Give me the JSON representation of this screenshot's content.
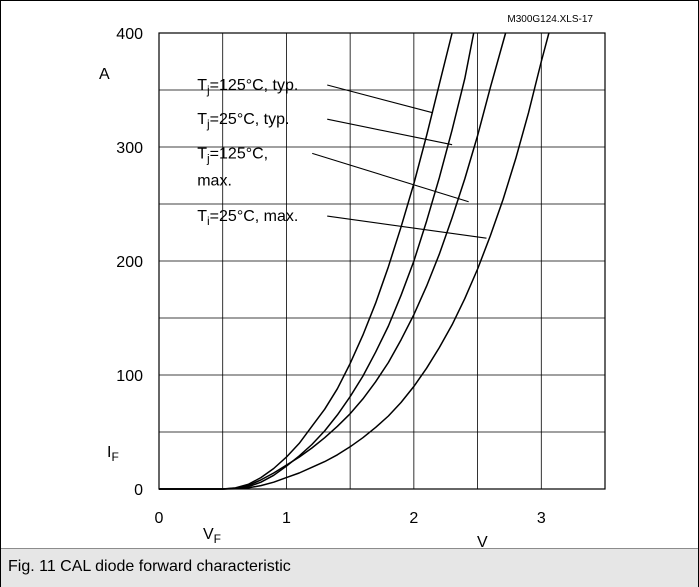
{
  "caption": "Fig. 11 CAL diode forward characteristic",
  "chart_data": {
    "type": "line",
    "file_tag": "M300G124.XLS-17",
    "xlim": [
      0,
      3.5
    ],
    "ylim": [
      0,
      400
    ],
    "x_ticks": [
      {
        "value": 0,
        "label": "0"
      },
      {
        "value": 1,
        "label": "1"
      },
      {
        "value": 2,
        "label": "2"
      },
      {
        "value": 3,
        "label": "3"
      }
    ],
    "y_ticks": [
      {
        "value": 0,
        "label": "0"
      },
      {
        "value": 100,
        "label": "100"
      },
      {
        "value": 200,
        "label": "200"
      },
      {
        "value": 300,
        "label": "300"
      },
      {
        "value": 400,
        "label": "400"
      }
    ],
    "grid": {
      "x_step": 0.5,
      "y_step": 50
    },
    "x_unit": "V",
    "y_unit": "A",
    "x_symbol": {
      "main": "V",
      "sub": "F"
    },
    "y_symbol": {
      "main": "I",
      "sub": "F"
    },
    "series": [
      {
        "label_main": "T",
        "label_sub": "j",
        "label_rest": "=125°C, typ.",
        "label_at": [
          0.3,
          350
        ],
        "leader_to": [
          2.15,
          330
        ],
        "points": [
          [
            0,
            0
          ],
          [
            0.5,
            0
          ],
          [
            0.6,
            1
          ],
          [
            0.7,
            4
          ],
          [
            0.8,
            10
          ],
          [
            0.9,
            18
          ],
          [
            1.0,
            28
          ],
          [
            1.1,
            40
          ],
          [
            1.2,
            55
          ],
          [
            1.3,
            70
          ],
          [
            1.4,
            88
          ],
          [
            1.5,
            110
          ],
          [
            1.6,
            135
          ],
          [
            1.7,
            163
          ],
          [
            1.8,
            195
          ],
          [
            1.9,
            230
          ],
          [
            2.0,
            268
          ],
          [
            2.1,
            310
          ],
          [
            2.2,
            355
          ],
          [
            2.3,
            400
          ]
        ]
      },
      {
        "label_main": "T",
        "label_sub": "j",
        "label_rest": "=25°C, typ.",
        "label_at": [
          0.3,
          320
        ],
        "leader_to": [
          2.3,
          302
        ],
        "points": [
          [
            0,
            0
          ],
          [
            0.5,
            0
          ],
          [
            0.6,
            0.5
          ],
          [
            0.7,
            2
          ],
          [
            0.8,
            6
          ],
          [
            0.9,
            12
          ],
          [
            1.0,
            20
          ],
          [
            1.1,
            29
          ],
          [
            1.2,
            39
          ],
          [
            1.3,
            51
          ],
          [
            1.4,
            65
          ],
          [
            1.5,
            81
          ],
          [
            1.6,
            99
          ],
          [
            1.7,
            120
          ],
          [
            1.8,
            143
          ],
          [
            1.9,
            170
          ],
          [
            2.0,
            200
          ],
          [
            2.1,
            235
          ],
          [
            2.2,
            273
          ],
          [
            2.3,
            315
          ],
          [
            2.4,
            360
          ],
          [
            2.47,
            400
          ]
        ]
      },
      {
        "label_main": "T",
        "label_sub": "j",
        "label_rest": "=125°C,",
        "label_line2": "max.",
        "label_at": [
          0.3,
          290
        ],
        "leader_to": [
          2.43,
          252
        ],
        "points": [
          [
            0,
            0
          ],
          [
            0.5,
            0
          ],
          [
            0.6,
            0.5
          ],
          [
            0.7,
            3
          ],
          [
            0.8,
            8
          ],
          [
            0.9,
            14
          ],
          [
            1.0,
            21
          ],
          [
            1.1,
            28
          ],
          [
            1.2,
            36
          ],
          [
            1.3,
            45
          ],
          [
            1.4,
            55
          ],
          [
            1.5,
            66
          ],
          [
            1.6,
            79
          ],
          [
            1.7,
            94
          ],
          [
            1.8,
            111
          ],
          [
            1.9,
            131
          ],
          [
            2.0,
            153
          ],
          [
            2.1,
            178
          ],
          [
            2.2,
            206
          ],
          [
            2.3,
            238
          ],
          [
            2.4,
            272
          ],
          [
            2.5,
            310
          ],
          [
            2.6,
            352
          ],
          [
            2.72,
            400
          ]
        ]
      },
      {
        "label_main": "T",
        "label_sub": "i",
        "label_rest": "=25°C, max.",
        "label_at": [
          0.3,
          235
        ],
        "leader_to": [
          2.57,
          220
        ],
        "points": [
          [
            0,
            0
          ],
          [
            0.5,
            0
          ],
          [
            0.6,
            0.2
          ],
          [
            0.7,
            1
          ],
          [
            0.8,
            3
          ],
          [
            0.9,
            6
          ],
          [
            1.0,
            10
          ],
          [
            1.1,
            14
          ],
          [
            1.2,
            19
          ],
          [
            1.3,
            24
          ],
          [
            1.4,
            30
          ],
          [
            1.5,
            37
          ],
          [
            1.6,
            45
          ],
          [
            1.7,
            54
          ],
          [
            1.8,
            64
          ],
          [
            1.9,
            76
          ],
          [
            2.0,
            90
          ],
          [
            2.1,
            106
          ],
          [
            2.2,
            124
          ],
          [
            2.3,
            144
          ],
          [
            2.4,
            167
          ],
          [
            2.5,
            193
          ],
          [
            2.6,
            222
          ],
          [
            2.7,
            254
          ],
          [
            2.8,
            290
          ],
          [
            2.9,
            330
          ],
          [
            3.0,
            375
          ],
          [
            3.06,
            400
          ]
        ]
      }
    ]
  }
}
